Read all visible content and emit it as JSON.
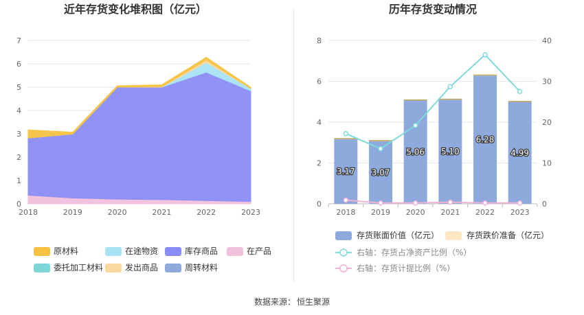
{
  "source": {
    "label": "数据来源：",
    "value": "恒生聚源"
  },
  "chart_data": [
    {
      "type": "area",
      "stacked": true,
      "title": "近年存货变化堆积图（亿元）",
      "categories": [
        "2018",
        "2019",
        "2020",
        "2021",
        "2022",
        "2023"
      ],
      "ylim": [
        0,
        7
      ],
      "yticks": [
        "0",
        "1",
        "2",
        "3",
        "4",
        "5",
        "6",
        "7"
      ],
      "grid": true,
      "legend_position": "bottom",
      "series": [
        {
          "name": "原材料",
          "color": "#f5c242",
          "values": [
            0.35,
            0.08,
            0.06,
            0.08,
            0.12,
            0.05
          ]
        },
        {
          "name": "在途物资",
          "color": "#a8e3f5",
          "values": [
            0,
            0,
            0,
            0,
            0.42,
            0.1
          ]
        },
        {
          "name": "库存商品",
          "color": "#8a8cf5",
          "values": [
            2.45,
            2.74,
            4.8,
            4.82,
            5.5,
            4.74
          ]
        },
        {
          "name": "在产品",
          "color": "#f0c0dc",
          "values": [
            0.37,
            0.25,
            0.2,
            0.18,
            0.14,
            0.1
          ]
        },
        {
          "name": "委托加工材料",
          "color": "#7ed6d6",
          "values": [
            0,
            0,
            0,
            0,
            0,
            0
          ]
        },
        {
          "name": "发出商品",
          "color": "#fad89e",
          "values": [
            0,
            0,
            0,
            0.02,
            0.1,
            0
          ]
        },
        {
          "name": "周转材料",
          "color": "#8eaadc",
          "values": [
            0,
            0,
            0,
            0,
            0,
            0
          ]
        }
      ]
    },
    {
      "type": "bar",
      "title": "历年存货变动情况",
      "categories": [
        "2018",
        "2019",
        "2020",
        "2021",
        "2022",
        "2023"
      ],
      "ylim_left": [
        0,
        8
      ],
      "yticks_left": [
        "0",
        "2",
        "4",
        "6",
        "8"
      ],
      "ylim_right": [
        0,
        40
      ],
      "yticks_right": [
        "0",
        "10",
        "20",
        "30",
        "40"
      ],
      "grid": true,
      "legend_position": "bottom",
      "series": [
        {
          "name": "存货账面价值（亿元）",
          "type": "bar",
          "axis": "left",
          "color": "#8eaadc",
          "values": [
            3.17,
            3.07,
            5.06,
            5.1,
            6.28,
            4.99
          ],
          "labels": [
            "3.17",
            "3.07",
            "5.06",
            "5.10",
            "6.28",
            "4.99"
          ]
        },
        {
          "name": "存货跌价准备（亿元）",
          "type": "bar",
          "axis": "left",
          "color": "#fde7c3",
          "values": [
            0.01,
            0.01,
            0.01,
            0.01,
            0.01,
            0.01
          ]
        },
        {
          "name": "右轴：存货占净资产比例（%）",
          "type": "line",
          "axis": "right",
          "color": "#7fd9dc",
          "values": [
            17.2,
            13.5,
            19.2,
            28.7,
            36.5,
            27.5
          ]
        },
        {
          "name": "右轴：存货计提比例（%）",
          "type": "line",
          "axis": "right",
          "color": "#f0b3d6",
          "values": [
            0.9,
            0.2,
            0.2,
            0.4,
            0.2,
            0.2
          ]
        }
      ]
    }
  ]
}
